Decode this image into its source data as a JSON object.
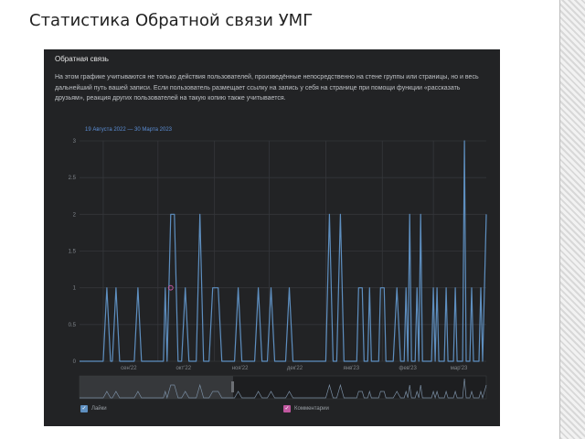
{
  "slide": {
    "title": "Статистика Обратной связи УМГ"
  },
  "panel": {
    "title": "Обратная связь",
    "description": "На этом графике учитываются не только действия пользователей, произведённые непосредственно на стене группы или страницы, но и весь дальнейший путь вашей записи. Если пользователь размещает ссылку на запись у себя на странице при помощи функции «рассказать друзьям», реакция других пользователей на такую копию также учитывается."
  },
  "range": {
    "start": "19 Августа 2022",
    "sep": "—",
    "end": "30 Марта 2023"
  },
  "colors": {
    "likes": "#5e8fc0",
    "comments": "#c0579f",
    "accent_link": "#5b8ed6"
  },
  "chart_data": {
    "type": "line",
    "x_start": "2022-08-19",
    "x_end": "2023-03-30",
    "ylim": [
      0,
      3
    ],
    "yticks": [
      "0",
      "0.5",
      "1",
      "1.5",
      "2",
      "2.5",
      "3"
    ],
    "xticks": [
      "сен'22",
      "окт'22",
      "ноя'22",
      "дек'22",
      "янв'23",
      "фев'23",
      "мар'23"
    ],
    "grid": true,
    "legend_position": "bottom",
    "series": [
      {
        "name": "Лайки",
        "color": "#5e8fc0",
        "points": [
          [
            "2022-08-19",
            0
          ],
          [
            "2022-09-01",
            0
          ],
          [
            "2022-09-03",
            1
          ],
          [
            "2022-09-05",
            0
          ],
          [
            "2022-09-06",
            0
          ],
          [
            "2022-09-08",
            1
          ],
          [
            "2022-09-10",
            0
          ],
          [
            "2022-09-18",
            0
          ],
          [
            "2022-09-20",
            1
          ],
          [
            "2022-09-22",
            0
          ],
          [
            "2022-10-04",
            0
          ],
          [
            "2022-10-05",
            1
          ],
          [
            "2022-10-06",
            0
          ],
          [
            "2022-10-08",
            2
          ],
          [
            "2022-10-10",
            2
          ],
          [
            "2022-10-12",
            0
          ],
          [
            "2022-10-14",
            0
          ],
          [
            "2022-10-16",
            1
          ],
          [
            "2022-10-18",
            0
          ],
          [
            "2022-10-22",
            0
          ],
          [
            "2022-10-24",
            2
          ],
          [
            "2022-10-26",
            0
          ],
          [
            "2022-10-29",
            0
          ],
          [
            "2022-10-31",
            1
          ],
          [
            "2022-11-03",
            1
          ],
          [
            "2022-11-05",
            0
          ],
          [
            "2022-11-12",
            0
          ],
          [
            "2022-11-14",
            1
          ],
          [
            "2022-11-16",
            0
          ],
          [
            "2022-11-23",
            0
          ],
          [
            "2022-11-25",
            1
          ],
          [
            "2022-11-27",
            0
          ],
          [
            "2022-11-30",
            0
          ],
          [
            "2022-12-02",
            1
          ],
          [
            "2022-12-04",
            0
          ],
          [
            "2022-12-10",
            0
          ],
          [
            "2022-12-12",
            1
          ],
          [
            "2022-12-14",
            0
          ],
          [
            "2023-01-01",
            0
          ],
          [
            "2023-01-03",
            2
          ],
          [
            "2023-01-05",
            0
          ],
          [
            "2023-01-07",
            0
          ],
          [
            "2023-01-09",
            2
          ],
          [
            "2023-01-11",
            0
          ],
          [
            "2023-01-18",
            0
          ],
          [
            "2023-01-19",
            1
          ],
          [
            "2023-01-21",
            1
          ],
          [
            "2023-01-22",
            0
          ],
          [
            "2023-01-24",
            0
          ],
          [
            "2023-01-25",
            1
          ],
          [
            "2023-01-26",
            0
          ],
          [
            "2023-01-30",
            0
          ],
          [
            "2023-01-31",
            1
          ],
          [
            "2023-02-02",
            1
          ],
          [
            "2023-02-03",
            0
          ],
          [
            "2023-02-07",
            0
          ],
          [
            "2023-02-09",
            1
          ],
          [
            "2023-02-11",
            0
          ],
          [
            "2023-02-13",
            0
          ],
          [
            "2023-02-14",
            1
          ],
          [
            "2023-02-15",
            0
          ],
          [
            "2023-02-16",
            2
          ],
          [
            "2023-02-17",
            0
          ],
          [
            "2023-02-19",
            0
          ],
          [
            "2023-02-20",
            1
          ],
          [
            "2023-02-21",
            0
          ],
          [
            "2023-02-22",
            2
          ],
          [
            "2023-02-23",
            0
          ],
          [
            "2023-02-28",
            0
          ],
          [
            "2023-03-01",
            1
          ],
          [
            "2023-03-02",
            0
          ],
          [
            "2023-03-03",
            1
          ],
          [
            "2023-03-04",
            0
          ],
          [
            "2023-03-07",
            0
          ],
          [
            "2023-03-08",
            1
          ],
          [
            "2023-03-09",
            0
          ],
          [
            "2023-03-12",
            0
          ],
          [
            "2023-03-13",
            1
          ],
          [
            "2023-03-14",
            0
          ],
          [
            "2023-03-17",
            0
          ],
          [
            "2023-03-18",
            3
          ],
          [
            "2023-03-19",
            0
          ],
          [
            "2023-03-21",
            0
          ],
          [
            "2023-03-22",
            1
          ],
          [
            "2023-03-23",
            0
          ],
          [
            "2023-03-26",
            0
          ],
          [
            "2023-03-27",
            1
          ],
          [
            "2023-03-28",
            0
          ],
          [
            "2023-03-30",
            2
          ]
        ]
      },
      {
        "name": "Комментарии",
        "color": "#c0579f",
        "points": [
          [
            "2022-10-08",
            1
          ]
        ]
      }
    ]
  }
}
